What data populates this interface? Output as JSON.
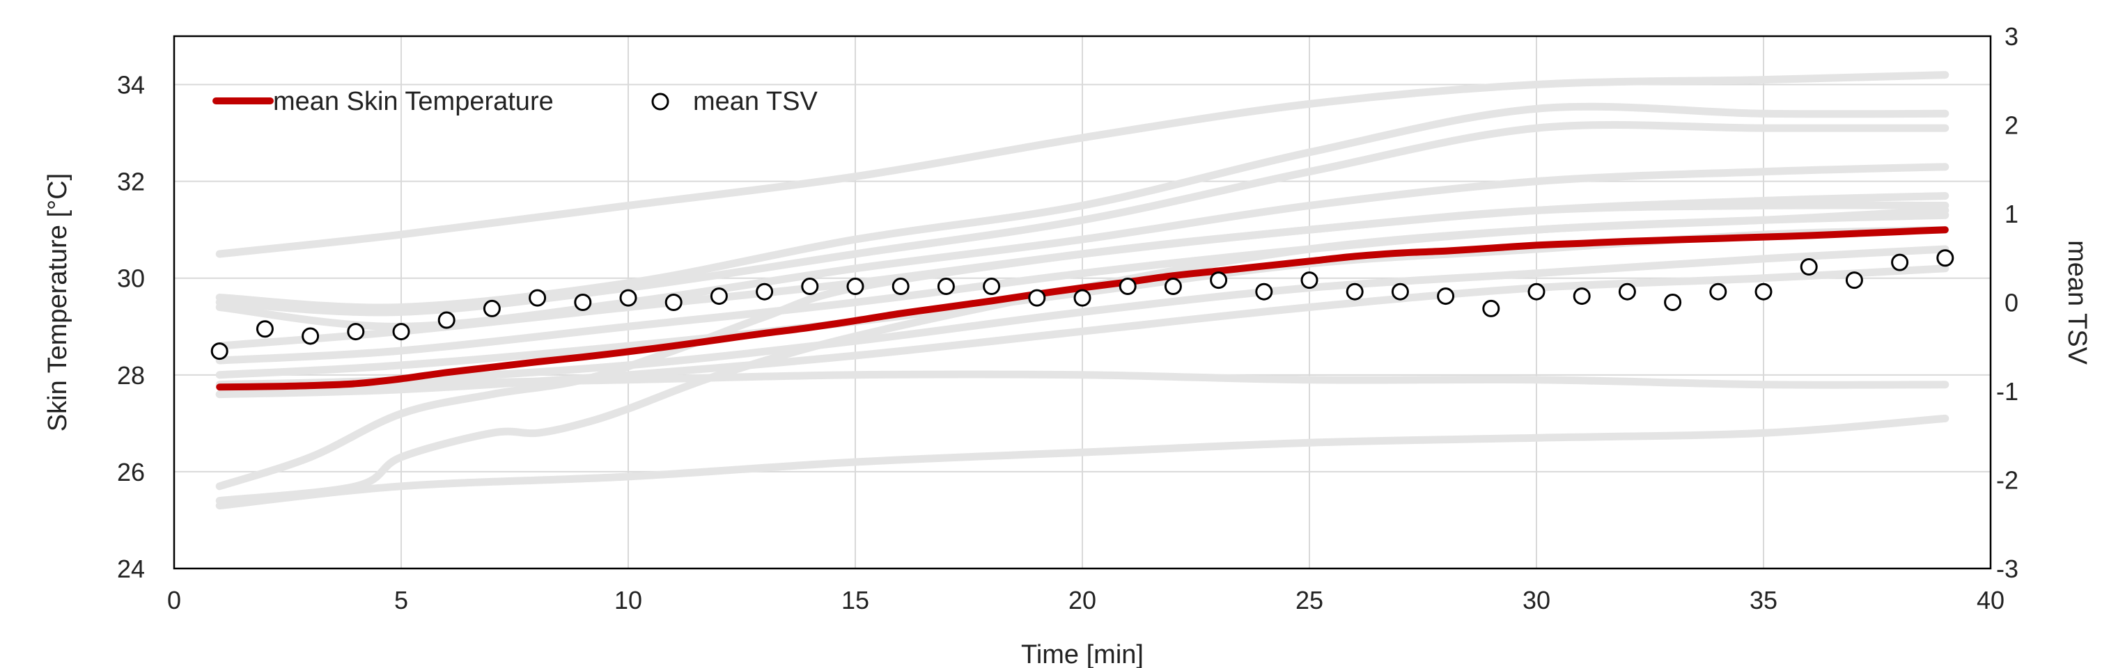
{
  "chart_data": {
    "type": "line",
    "title": "",
    "xlabel": "Time [min]",
    "ylabel": "Skin Temperature [°C]",
    "y2label": "mean TSV",
    "xlim": [
      0,
      40
    ],
    "ylim": [
      24,
      35
    ],
    "y2lim": [
      -3,
      3
    ],
    "xticks": [
      0,
      5,
      10,
      15,
      20,
      25,
      30,
      35,
      40
    ],
    "yticks": [
      24,
      26,
      28,
      30,
      32,
      34
    ],
    "y2ticks": [
      -3,
      -2,
      -1,
      0,
      1,
      2,
      3
    ],
    "grid": true,
    "legend_position": "top-left",
    "colors": {
      "mean_line": "#c00000",
      "individual": "#e4e4e4",
      "grid": "#d9d9d9",
      "axis": "#000000"
    },
    "legend": [
      "mean Skin Temperature",
      "mean TSV"
    ],
    "x": [
      1,
      2,
      3,
      4,
      5,
      6,
      7,
      8,
      9,
      10,
      11,
      12,
      13,
      14,
      15,
      16,
      17,
      18,
      19,
      20,
      21,
      22,
      23,
      24,
      25,
      26,
      27,
      28,
      29,
      30,
      31,
      32,
      33,
      34,
      35,
      36,
      37,
      38,
      39
    ],
    "series": [
      {
        "name": "mean Skin Temperature",
        "axis": "left",
        "style": "line",
        "values": [
          27.75,
          27.76,
          27.78,
          27.82,
          27.92,
          28.05,
          28.16,
          28.27,
          28.37,
          28.48,
          28.6,
          28.73,
          28.86,
          28.98,
          29.12,
          29.27,
          29.4,
          29.53,
          29.67,
          29.8,
          29.92,
          30.05,
          30.15,
          30.25,
          30.35,
          30.45,
          30.52,
          30.56,
          30.62,
          30.68,
          30.72,
          30.76,
          30.79,
          30.82,
          30.85,
          30.88,
          30.92,
          30.96,
          31.0
        ]
      },
      {
        "name": "mean TSV",
        "axis": "right",
        "style": "marker",
        "values": [
          -0.55,
          -0.3,
          -0.38,
          -0.33,
          -0.33,
          -0.2,
          -0.07,
          0.05,
          0,
          0.05,
          0,
          0.07,
          0.12,
          0.18,
          0.18,
          0.18,
          0.18,
          0.18,
          0.05,
          0.05,
          0.18,
          0.18,
          0.25,
          0.12,
          0.25,
          0.12,
          0.12,
          0.07,
          -0.07,
          0.12,
          0.07,
          0.12,
          0,
          0.12,
          0.12,
          0.4,
          0.25,
          0.45,
          0.5
        ]
      }
    ],
    "individual_series": [
      {
        "x": [
          1,
          5,
          10,
          15,
          20,
          25,
          30,
          35,
          39
        ],
        "values": [
          30.5,
          30.9,
          31.5,
          32.1,
          32.9,
          33.6,
          34.0,
          34.1,
          34.2
        ]
      },
      {
        "x": [
          1,
          5,
          10,
          15,
          20,
          25,
          30,
          35,
          39
        ],
        "values": [
          29.6,
          29.4,
          29.9,
          30.8,
          31.5,
          32.6,
          33.5,
          33.4,
          33.4
        ]
      },
      {
        "x": [
          1,
          5,
          10,
          15,
          20,
          25,
          30,
          35,
          39
        ],
        "values": [
          29.5,
          29.3,
          29.8,
          30.5,
          31.2,
          32.2,
          33.1,
          33.1,
          33.1
        ]
      },
      {
        "x": [
          1,
          5,
          10,
          15,
          20,
          25,
          30,
          35,
          39
        ],
        "values": [
          29.4,
          29.0,
          29.5,
          30.2,
          30.8,
          31.5,
          32.0,
          32.2,
          32.3
        ]
      },
      {
        "x": [
          1,
          5,
          10,
          15,
          20,
          25,
          30,
          35,
          39
        ],
        "values": [
          28.6,
          28.9,
          29.4,
          29.9,
          30.5,
          31.0,
          31.4,
          31.6,
          31.7
        ]
      },
      {
        "x": [
          1,
          5,
          10,
          15,
          20,
          25,
          30,
          35,
          39
        ],
        "values": [
          28.3,
          28.5,
          29.0,
          29.5,
          30.1,
          30.6,
          31.0,
          31.2,
          31.4
        ]
      },
      {
        "x": [
          1,
          5,
          10,
          15,
          20,
          25,
          30,
          35,
          39
        ],
        "values": [
          28.0,
          28.2,
          28.6,
          29.1,
          29.7,
          30.3,
          30.6,
          30.9,
          31.0
        ]
      },
      {
        "x": [
          1,
          5,
          10,
          15,
          20,
          25,
          30,
          35,
          39
        ],
        "values": [
          27.8,
          27.9,
          28.2,
          28.7,
          29.3,
          29.8,
          30.1,
          30.4,
          30.6
        ]
      },
      {
        "x": [
          1,
          5,
          10,
          15,
          20,
          25,
          30,
          35,
          39
        ],
        "values": [
          27.6,
          27.7,
          28.0,
          28.4,
          28.9,
          29.4,
          29.8,
          30.0,
          30.2
        ]
      },
      {
        "x": [
          1,
          5,
          10,
          15,
          20,
          25,
          30,
          35,
          39
        ],
        "values": [
          27.6,
          27.8,
          27.9,
          28.0,
          28.0,
          27.9,
          27.9,
          27.8,
          27.8
        ]
      },
      {
        "x": [
          1,
          3,
          5,
          7,
          9,
          11,
          13,
          15,
          20,
          25,
          30,
          35,
          39
        ],
        "values": [
          25.7,
          26.3,
          27.2,
          27.6,
          27.9,
          28.5,
          29.2,
          29.8,
          30.5,
          31.0,
          31.4,
          31.5,
          31.5
        ]
      },
      {
        "x": [
          1,
          4,
          5,
          7,
          8,
          9,
          10,
          12,
          15,
          20,
          25,
          30,
          35,
          39
        ],
        "values": [
          25.4,
          25.7,
          26.3,
          26.8,
          26.8,
          27.0,
          27.3,
          28.0,
          28.8,
          29.8,
          30.6,
          31.0,
          31.2,
          31.3
        ]
      },
      {
        "x": [
          1,
          5,
          10,
          15,
          20,
          25,
          30,
          35,
          39
        ],
        "values": [
          25.3,
          25.7,
          25.9,
          26.2,
          26.4,
          26.6,
          26.7,
          26.8,
          27.1
        ]
      }
    ]
  }
}
